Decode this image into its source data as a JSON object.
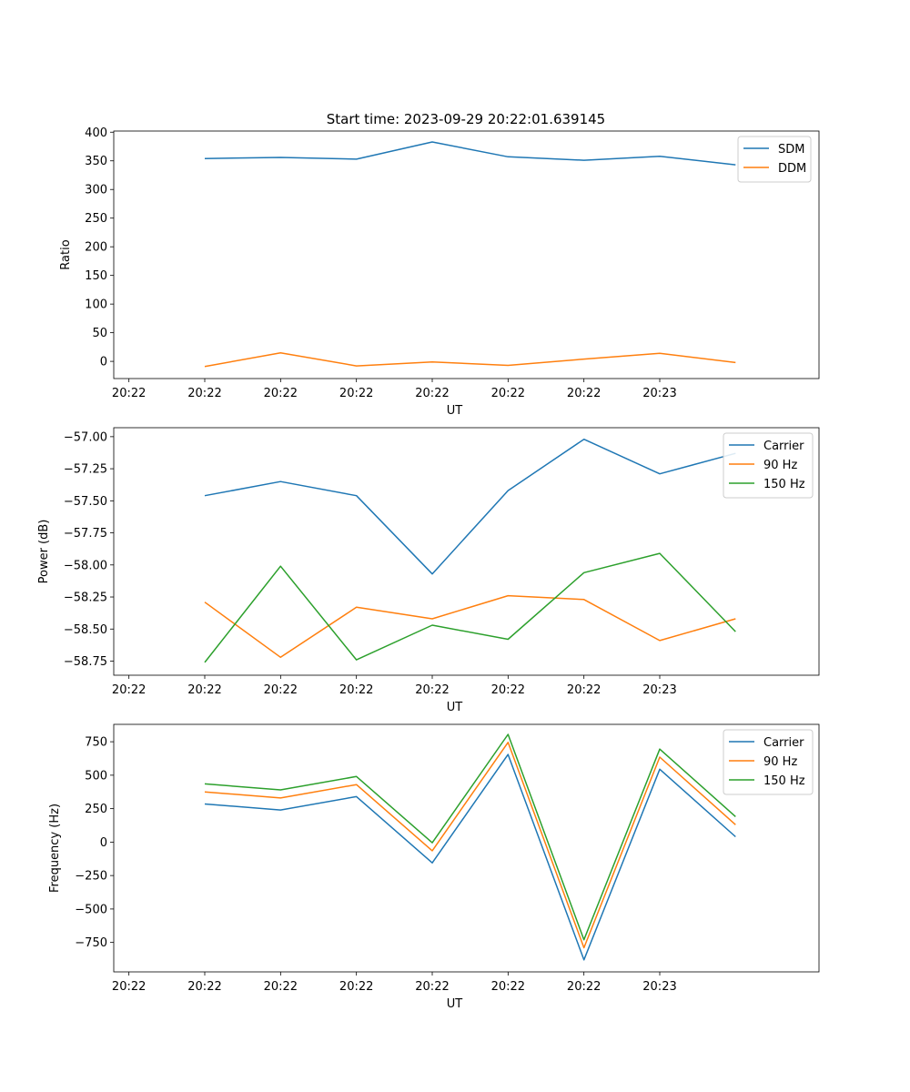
{
  "figure": {
    "title": "Start time: 2023-09-29 20:22:01.639145"
  },
  "chart_data": [
    {
      "type": "line",
      "title": "Start time: 2023-09-29 20:22:01.639145",
      "xlabel": "UT",
      "ylabel": "Ratio",
      "x_ticks": [
        "20:22",
        "20:22",
        "20:22",
        "20:22",
        "20:22",
        "20:22",
        "20:22",
        "20:23"
      ],
      "x": [
        1,
        2,
        3,
        4,
        5,
        6,
        7,
        8
      ],
      "xlim": [
        -0.2,
        9.1
      ],
      "ylim": [
        -30,
        402
      ],
      "yticks": [
        0,
        50,
        100,
        150,
        200,
        250,
        300,
        350,
        400
      ],
      "ytick_labels": [
        "0",
        "50",
        "100",
        "150",
        "200",
        "250",
        "300",
        "350",
        "400"
      ],
      "legend_position": "top-right",
      "series": [
        {
          "name": "SDM",
          "color": "#1f77b4",
          "values": [
            354,
            356,
            353,
            383,
            357,
            351,
            358,
            343
          ]
        },
        {
          "name": "DDM",
          "color": "#ff7f0e",
          "values": [
            -9,
            15,
            -8,
            -1,
            -7,
            4,
            14,
            -2
          ]
        }
      ]
    },
    {
      "type": "line",
      "xlabel": "UT",
      "ylabel": "Power (dB)",
      "x_ticks": [
        "20:22",
        "20:22",
        "20:22",
        "20:22",
        "20:22",
        "20:22",
        "20:22",
        "20:23"
      ],
      "x": [
        1,
        2,
        3,
        4,
        5,
        6,
        7,
        8
      ],
      "xlim": [
        -0.2,
        9.1
      ],
      "ylim": [
        -58.86,
        -56.93
      ],
      "yticks": [
        -58.75,
        -58.5,
        -58.25,
        -58.0,
        -57.75,
        -57.5,
        -57.25,
        -57.0
      ],
      "ytick_labels": [
        "−58.75",
        "−58.50",
        "−58.25",
        "−58.00",
        "−57.75",
        "−57.50",
        "−57.25",
        "−57.00"
      ],
      "legend_position": "top-right",
      "series": [
        {
          "name": "Carrier",
          "color": "#1f77b4",
          "values": [
            -57.46,
            -57.35,
            -57.46,
            -58.07,
            -57.42,
            -57.02,
            -57.29,
            -57.13
          ]
        },
        {
          "name": "90 Hz",
          "color": "#ff7f0e",
          "values": [
            -58.29,
            -58.72,
            -58.33,
            -58.42,
            -58.24,
            -58.27,
            -58.59,
            -58.42
          ]
        },
        {
          "name": "150 Hz",
          "color": "#2ca02c",
          "values": [
            -58.76,
            -58.01,
            -58.74,
            -58.47,
            -58.58,
            -58.06,
            -57.91,
            -58.52
          ]
        }
      ]
    },
    {
      "type": "line",
      "xlabel": "UT",
      "ylabel": "Frequency (Hz)",
      "x_ticks": [
        "20:22",
        "20:22",
        "20:22",
        "20:22",
        "20:22",
        "20:22",
        "20:22",
        "20:23"
      ],
      "x": [
        1,
        2,
        3,
        4,
        5,
        6,
        7,
        8
      ],
      "xlim": [
        -0.2,
        9.1
      ],
      "ylim": [
        -970,
        880
      ],
      "yticks": [
        -750,
        -500,
        -250,
        0,
        250,
        500,
        750
      ],
      "ytick_labels": [
        "−750",
        "−500",
        "−250",
        "0",
        "250",
        "500",
        "750"
      ],
      "legend_position": "top-right",
      "series": [
        {
          "name": "Carrier",
          "color": "#1f77b4",
          "values": [
            285,
            240,
            340,
            -155,
            655,
            -880,
            545,
            40
          ]
        },
        {
          "name": "90 Hz",
          "color": "#ff7f0e",
          "values": [
            375,
            330,
            430,
            -65,
            745,
            -790,
            635,
            130
          ]
        },
        {
          "name": "150 Hz",
          "color": "#2ca02c",
          "values": [
            435,
            390,
            490,
            -5,
            805,
            -730,
            695,
            190
          ]
        }
      ]
    }
  ]
}
